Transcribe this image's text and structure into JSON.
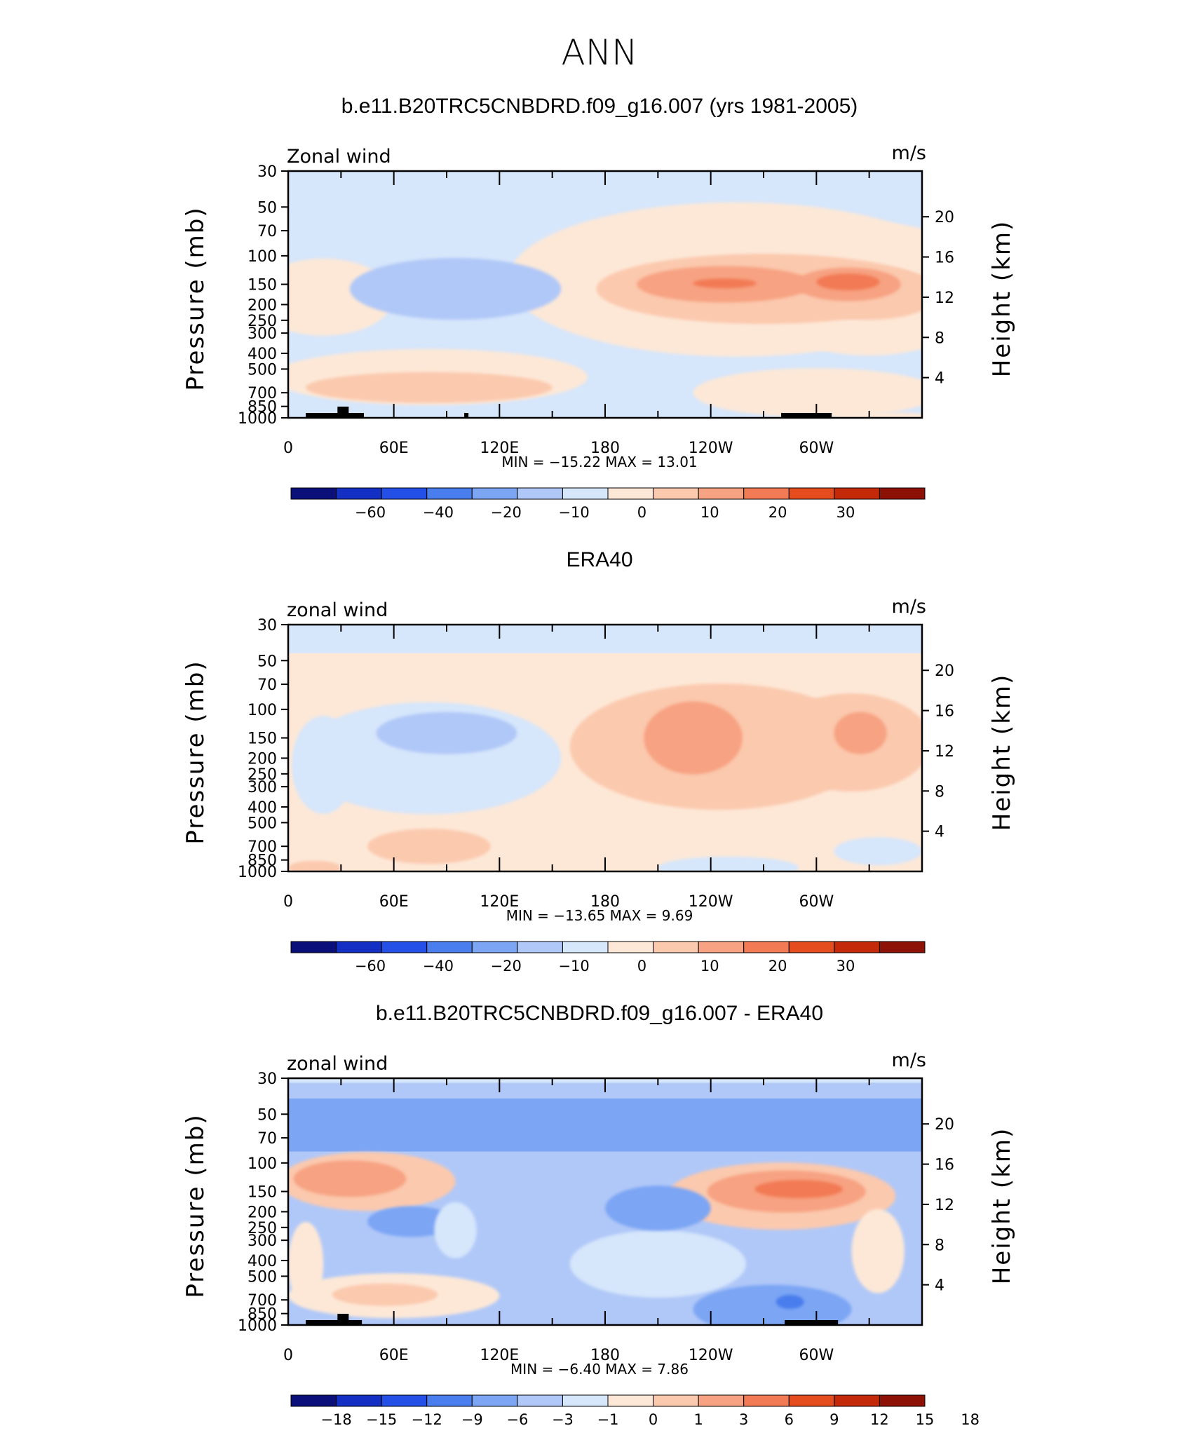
{
  "figure": {
    "title": "ANN"
  },
  "colors": {
    "model_panel": [
      "#0a0f7a",
      "#1430c4",
      "#2450e8",
      "#4a7ded",
      "#7ca5f4",
      "#b0c8f8",
      "#d6e6fb",
      "#fde8d7",
      "#fbc9ae",
      "#f7a282",
      "#f27a54",
      "#e54d1e",
      "#c42a0a",
      "#8e1106"
    ],
    "diff_panel": [
      "#0a0f7a",
      "#1430c4",
      "#2450e8",
      "#4a7ded",
      "#7ca5f4",
      "#b0c8f8",
      "#d6e6fb",
      "#fde8d7",
      "#fbc9ae",
      "#f7a282",
      "#f27a54",
      "#e54d1e",
      "#c42a0a",
      "#8e1106"
    ]
  },
  "chart_data": [
    {
      "type": "heatmap",
      "title": "b.e11.B20TRC5CNBDRD.f09_g16.007 (yrs 1981-2005)",
      "left_label": "Zonal wind",
      "units": "m/s",
      "ylabel": "Pressure (mb)",
      "ylabel_right": "Height (km)",
      "x_ticks": [
        "0",
        "60E",
        "120E",
        "180",
        "120W",
        "60W"
      ],
      "y_ticks": [
        "30",
        "50",
        "70",
        "100",
        "150",
        "200",
        "250",
        "300",
        "400",
        "500",
        "700",
        "850",
        "1000"
      ],
      "y_right_ticks": [
        "20",
        "16",
        "12",
        "8",
        "4"
      ],
      "x_range": [
        0,
        360
      ],
      "y_range_mb": [
        1000,
        30
      ],
      "min_max_text": "MIN = −15.22   MAX =   13.01",
      "min": -15.22,
      "max": 13.01,
      "colorbar_labels": [
        "−60",
        "−40",
        "−20",
        "−10",
        "0",
        "10",
        "20",
        "30"
      ]
    },
    {
      "type": "heatmap",
      "title": "ERA40",
      "left_label": "zonal wind",
      "units": "m/s",
      "ylabel": "Pressure (mb)",
      "ylabel_right": "Height (km)",
      "x_ticks": [
        "0",
        "60E",
        "120E",
        "180",
        "120W",
        "60W"
      ],
      "y_ticks": [
        "30",
        "50",
        "70",
        "100",
        "150",
        "200",
        "250",
        "300",
        "400",
        "500",
        "700",
        "850",
        "1000"
      ],
      "y_right_ticks": [
        "20",
        "16",
        "12",
        "8",
        "4"
      ],
      "x_range": [
        0,
        360
      ],
      "y_range_mb": [
        1000,
        30
      ],
      "min_max_text": "MIN = −13.65   MAX =     9.69",
      "min": -13.65,
      "max": 9.69,
      "colorbar_labels": [
        "−60",
        "−40",
        "−20",
        "−10",
        "0",
        "10",
        "20",
        "30"
      ]
    },
    {
      "type": "heatmap",
      "title": "b.e11.B20TRC5CNBDRD.f09_g16.007 - ERA40",
      "left_label": "zonal wind",
      "units": "m/s",
      "ylabel": "Pressure (mb)",
      "ylabel_right": "Height (km)",
      "x_ticks": [
        "0",
        "60E",
        "120E",
        "180",
        "120W",
        "60W"
      ],
      "y_ticks": [
        "30",
        "50",
        "70",
        "100",
        "150",
        "200",
        "250",
        "300",
        "400",
        "500",
        "700",
        "850",
        "1000"
      ],
      "y_right_ticks": [
        "20",
        "16",
        "12",
        "8",
        "4"
      ],
      "x_range": [
        0,
        360
      ],
      "y_range_mb": [
        1000,
        30
      ],
      "min_max_text": "MIN =   −6.40   MAX =     7.86",
      "min": -6.4,
      "max": 7.86,
      "colorbar_labels": [
        "−18",
        "−15",
        "−12",
        "−9",
        "−6",
        "−3",
        "−1",
        "0",
        "1",
        "3",
        "6",
        "9",
        "12",
        "15",
        "18"
      ]
    }
  ]
}
